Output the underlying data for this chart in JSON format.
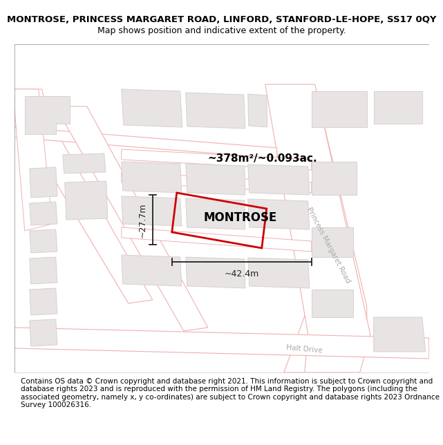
{
  "title_line1": "MONTROSE, PRINCESS MARGARET ROAD, LINFORD, STANFORD-LE-HOPE, SS17 0QY",
  "title_line2": "Map shows position and indicative extent of the property.",
  "footer_text": "Contains OS data © Crown copyright and database right 2021. This information is subject to Crown copyright and database rights 2023 and is reproduced with the permission of HM Land Registry. The polygons (including the associated geometry, namely x, y co-ordinates) are subject to Crown copyright and database rights 2023 Ordnance Survey 100026316.",
  "area_label": "~378m²/~0.093ac.",
  "width_label": "~42.4m",
  "height_label": "~27.7m",
  "property_label": "MONTROSE",
  "road_label_1": "Princess Margaret Road",
  "road_label_2": "Halt Drive",
  "bg_color": "#ffffff",
  "map_bg": "#ffffff",
  "road_fill": "#ffffff",
  "road_edge": "#f0b0b0",
  "block_fill": "#e8e4e4",
  "block_edge": "#d8d0d0",
  "prop_edge": "#cc0000",
  "dim_color": "#222222",
  "road_label_color": "#aaaaaa",
  "title_fontsize": 9.5,
  "subtitle_fontsize": 9.0,
  "footer_fontsize": 7.5
}
